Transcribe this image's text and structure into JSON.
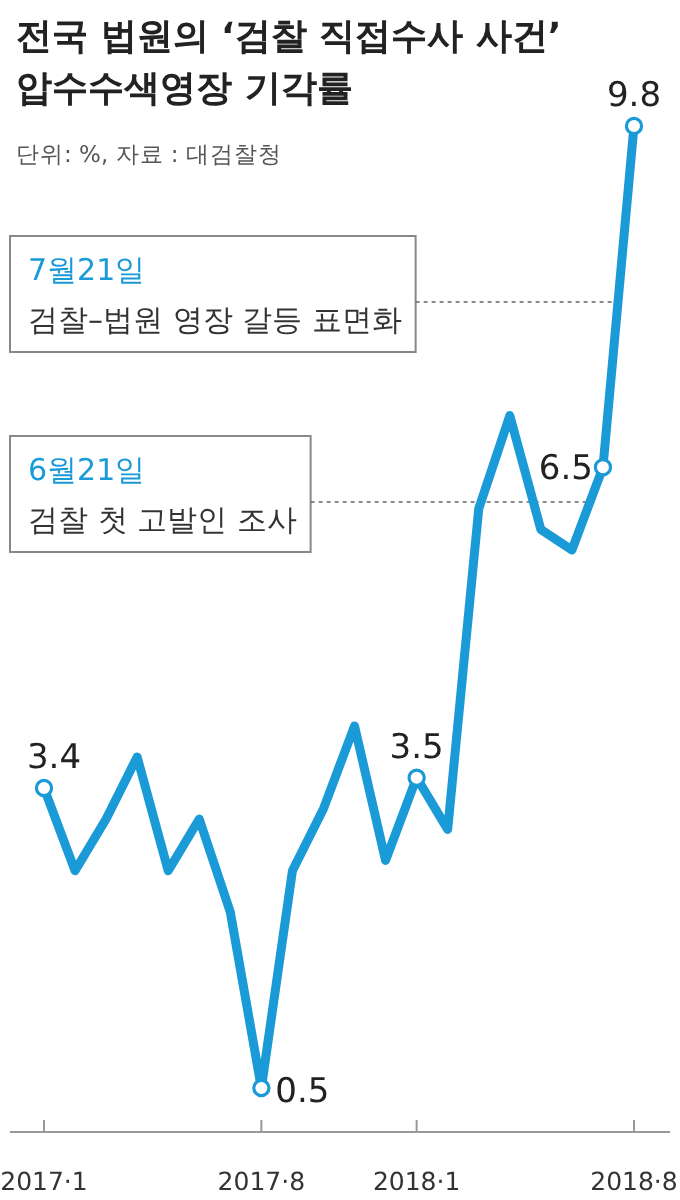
{
  "chart_data": {
    "type": "line",
    "title": "전국 법원의 ‘검찰 직접수사 사건’ 압수수색영장 기각률",
    "subtitle": "단위: %, 자료 : 대검찰청",
    "categories": [
      "2017·1",
      null,
      null,
      null,
      null,
      null,
      null,
      "2017·8",
      null,
      null,
      null,
      null,
      "2018·1",
      null,
      null,
      null,
      null,
      null,
      null,
      "2018·8"
    ],
    "values": [
      3.4,
      2.6,
      3.1,
      3.7,
      2.6,
      3.1,
      2.2,
      0.5,
      2.6,
      3.2,
      4.0,
      2.7,
      3.5,
      3.0,
      6.1,
      7.0,
      5.9,
      5.7,
      6.5,
      9.8
    ],
    "value_labels": [
      "3.4",
      null,
      null,
      null,
      null,
      null,
      null,
      "0.5",
      null,
      null,
      null,
      null,
      "3.5",
      null,
      null,
      null,
      null,
      null,
      "6.5",
      "9.8"
    ],
    "color": "#1a9ad6",
    "annotations": [
      "7월21일",
      "검찰–법원 영장 갈등 표면화",
      "6월21일",
      "검찰 첫 고발인 조사"
    ]
  }
}
